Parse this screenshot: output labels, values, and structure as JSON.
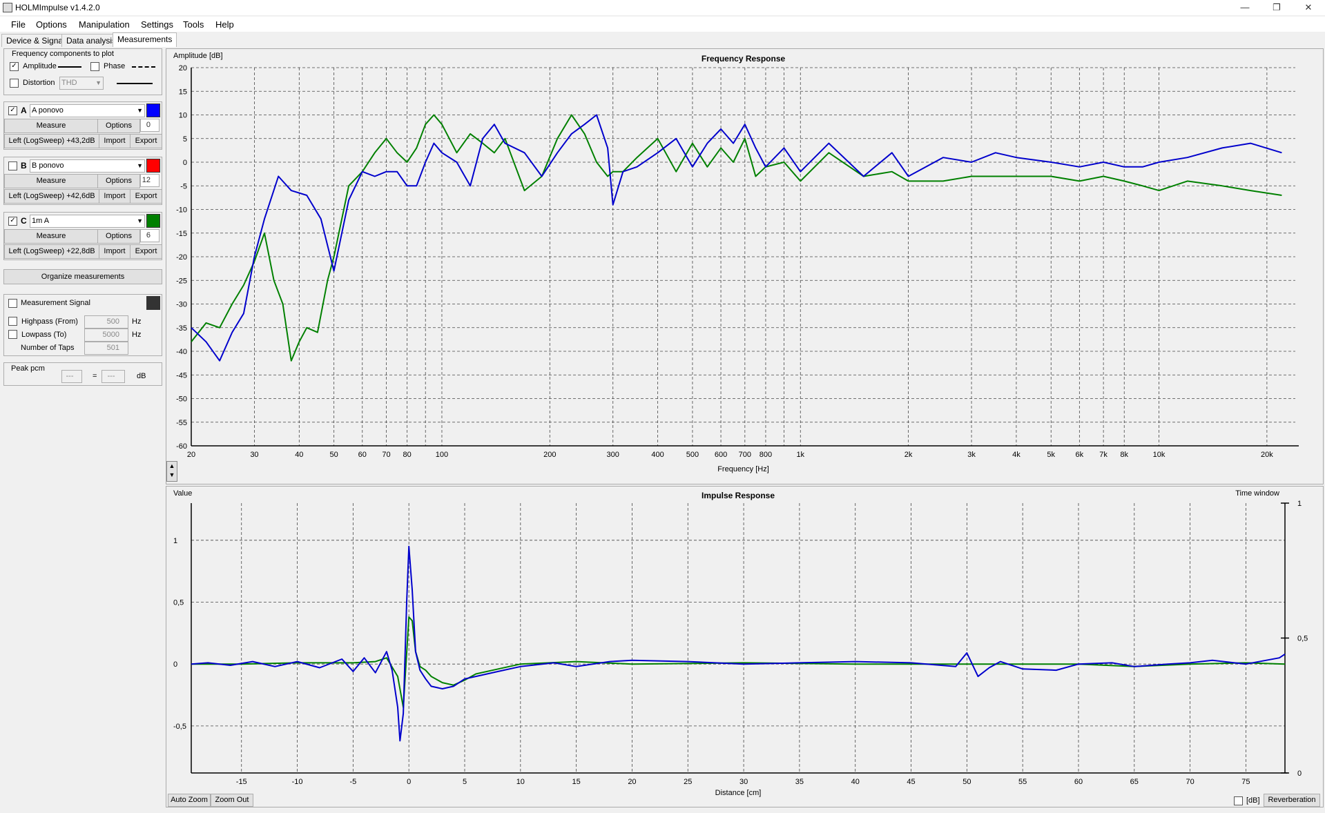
{
  "window": {
    "title": "HOLMImpulse  v1.4.2.0"
  },
  "menu": [
    "File",
    "Options",
    "Manipulation",
    "Settings",
    "Tools",
    "Help"
  ],
  "tabs": [
    "Device & Signal",
    "Data analysis",
    "Measurements"
  ],
  "components": {
    "title": "Frequency components to plot",
    "amplitude": "Amplitude",
    "phase": "Phase",
    "distortion": "Distortion",
    "distortion_type": "THD"
  },
  "measurements": [
    {
      "letter": "A",
      "checked": true,
      "name": "A ponovo",
      "color": "#0000ff",
      "measure": "Measure",
      "options": "Options",
      "offset": "0",
      "info": "Left (LogSweep) +43,2dB",
      "import": "Import",
      "export": "Export"
    },
    {
      "letter": "B",
      "checked": false,
      "name": "B ponovo",
      "color": "#ff0000",
      "measure": "Measure",
      "options": "Options",
      "offset": "12",
      "info": "Left (LogSweep) +42,6dB",
      "import": "Import",
      "export": "Export"
    },
    {
      "letter": "C",
      "checked": true,
      "name": "1m A",
      "color": "#008000",
      "measure": "Measure",
      "options": "Options",
      "offset": "6",
      "info": "Left (LogSweep) +22,8dB",
      "import": "Import",
      "export": "Export"
    }
  ],
  "organize": "Organize measurements",
  "signal": {
    "label": "Measurement Signal",
    "color": "#333333",
    "highpass": "Highpass (From)",
    "highpass_value": "500",
    "lowpass": "Lowpass (To)",
    "lowpass_value": "5000",
    "taps": "Number of Taps",
    "taps_value": "501",
    "unit": "Hz"
  },
  "peak": {
    "label": "Peak pcm",
    "v1": "---",
    "eq": "=",
    "v2": "---",
    "unit": "dB"
  },
  "freq_plot": {
    "title": "Frequency Response",
    "ylabel": "Amplitude [dB]",
    "xlabel": "Frequency [Hz]"
  },
  "imp_plot": {
    "title": "Impulse Response",
    "ylabel": "Value",
    "xlabel": "Distance [cm]",
    "time_window": "Time window",
    "auto_zoom": "Auto Zoom",
    "zoom_out": "Zoom Out",
    "db": "[dB]",
    "reverberation": "Reverberation"
  },
  "chart_data": [
    {
      "type": "line",
      "title": "Frequency Response",
      "xlabel": "Frequency [Hz]",
      "ylabel": "Amplitude [dB]",
      "xscale": "log",
      "xlim": [
        20,
        24000
      ],
      "ylim": [
        -60,
        20
      ],
      "grid": true,
      "x_ticks": [
        20,
        30,
        40,
        50,
        60,
        70,
        80,
        100,
        200,
        300,
        400,
        500,
        600,
        700,
        800,
        1000,
        2000,
        3000,
        4000,
        5000,
        6000,
        7000,
        8000,
        10000,
        20000
      ],
      "x_tick_labels": [
        "20",
        "30",
        "40",
        "50",
        "60",
        "70",
        "80",
        "100",
        "200",
        "300",
        "400",
        "500",
        "600",
        "700",
        "800",
        "1k",
        "2k",
        "3k",
        "4k",
        "5k",
        "6k",
        "7k",
        "8k",
        "10k",
        "20k"
      ],
      "y_ticks": [
        20,
        15,
        10,
        5,
        0,
        -5,
        -10,
        -15,
        -20,
        -25,
        -30,
        -35,
        -40,
        -45,
        -50,
        -55,
        -60
      ],
      "series": [
        {
          "color": "#0000cc",
          "x": [
            20,
            22,
            24,
            26,
            28,
            30,
            32,
            35,
            38,
            42,
            46,
            50,
            55,
            60,
            65,
            70,
            75,
            80,
            85,
            90,
            95,
            100,
            110,
            120,
            130,
            140,
            150,
            170,
            190,
            210,
            230,
            250,
            270,
            290,
            300,
            320,
            350,
            400,
            450,
            500,
            550,
            600,
            650,
            700,
            750,
            800,
            900,
            1000,
            1200,
            1500,
            1800,
            2000,
            2500,
            3000,
            3500,
            4000,
            5000,
            6000,
            7000,
            8000,
            9000,
            10000,
            12000,
            15000,
            18000,
            22000
          ],
          "y": [
            -35,
            -38,
            -42,
            -36,
            -32,
            -20,
            -12,
            -3,
            -6,
            -7,
            -12,
            -23,
            -8,
            -2,
            -3,
            -2,
            -2,
            -5,
            -5,
            0,
            4,
            2,
            0,
            -5,
            5,
            8,
            4,
            2,
            -3,
            2,
            6,
            8,
            10,
            3,
            -9,
            -2,
            -1,
            2,
            5,
            -1,
            4,
            7,
            4,
            8,
            3,
            -1,
            3,
            -2,
            4,
            -3,
            2,
            -3,
            1,
            0,
            2,
            1,
            0,
            -1,
            0,
            -1,
            -1,
            0,
            1,
            3,
            4,
            2
          ]
        },
        {
          "color": "#008000",
          "x": [
            20,
            22,
            24,
            26,
            28,
            30,
            32,
            34,
            36,
            38,
            40,
            42,
            45,
            48,
            50,
            55,
            60,
            65,
            70,
            75,
            80,
            85,
            90,
            95,
            100,
            110,
            120,
            130,
            140,
            150,
            170,
            190,
            210,
            230,
            250,
            270,
            290,
            300,
            320,
            350,
            400,
            450,
            500,
            550,
            600,
            650,
            700,
            750,
            800,
            900,
            1000,
            1200,
            1500,
            1800,
            2000,
            2500,
            3000,
            3500,
            4000,
            5000,
            6000,
            7000,
            8000,
            9000,
            10000,
            12000,
            15000,
            18000,
            22000
          ],
          "y": [
            -38,
            -34,
            -35,
            -30,
            -26,
            -21,
            -15,
            -25,
            -30,
            -42,
            -38,
            -35,
            -36,
            -25,
            -20,
            -5,
            -2,
            2,
            5,
            2,
            0,
            3,
            8,
            10,
            8,
            2,
            6,
            4,
            2,
            5,
            -6,
            -3,
            5,
            10,
            6,
            0,
            -3,
            -2,
            -2,
            1,
            5,
            -2,
            4,
            -1,
            3,
            0,
            5,
            -3,
            -1,
            0,
            -4,
            2,
            -3,
            -2,
            -4,
            -4,
            -3,
            -3,
            -3,
            -3,
            -4,
            -3,
            -4,
            -5,
            -6,
            -4,
            -5,
            -6,
            -7
          ]
        }
      ]
    },
    {
      "type": "line",
      "title": "Impulse Response",
      "xlabel": "Distance [cm]",
      "ylabel": "Value",
      "xlim": [
        -19.5,
        78.5
      ],
      "ylim": [
        -0.88,
        1.3
      ],
      "grid": true,
      "x_ticks": [
        -15,
        -10,
        -5,
        0,
        5,
        10,
        15,
        20,
        25,
        30,
        35,
        40,
        45,
        50,
        55,
        60,
        65,
        70,
        75
      ],
      "y_ticks": [
        1,
        0.5,
        0,
        -0.5
      ],
      "y_tick_labels": [
        "1",
        "0,5",
        "0",
        "-0,5"
      ],
      "right_axis_ticks": [
        "1",
        "0,5",
        "0"
      ],
      "series": [
        {
          "color": "#0000cc",
          "x": [
            -19.5,
            -18,
            -16,
            -14,
            -12,
            -10,
            -8,
            -6,
            -5,
            -4,
            -3,
            -2,
            -1.5,
            -1,
            -0.8,
            -0.5,
            -0.2,
            0,
            0.3,
            0.6,
            1,
            1.5,
            2,
            3,
            4,
            5,
            6,
            8,
            10,
            13,
            15,
            18,
            20,
            25,
            30,
            35,
            40,
            45,
            49,
            50,
            51,
            52,
            53,
            55,
            58,
            60,
            63,
            65,
            68,
            70,
            72,
            75,
            78,
            78.5
          ],
          "y": [
            0,
            0.01,
            -0.01,
            0.02,
            -0.02,
            0.02,
            -0.03,
            0.04,
            -0.06,
            0.05,
            -0.07,
            0.1,
            -0.05,
            -0.35,
            -0.62,
            -0.4,
            0.5,
            0.95,
            0.6,
            0.1,
            -0.05,
            -0.12,
            -0.18,
            -0.2,
            -0.18,
            -0.12,
            -0.1,
            -0.06,
            -0.02,
            0.01,
            -0.02,
            0.02,
            0.03,
            0.02,
            0.0,
            0.01,
            0.02,
            0.01,
            -0.02,
            0.09,
            -0.1,
            -0.03,
            0.02,
            -0.04,
            -0.05,
            0.0,
            0.01,
            -0.02,
            0.0,
            0.01,
            0.03,
            0.0,
            0.05,
            0.08
          ]
        },
        {
          "color": "#008000",
          "x": [
            -19.5,
            -15,
            -10,
            -5,
            -3,
            -2,
            -1,
            -0.5,
            0,
            0.3,
            0.6,
            1,
            1.5,
            2,
            3,
            4,
            5,
            6,
            8,
            10,
            15,
            20,
            30,
            40,
            50,
            60,
            65,
            70,
            75,
            78.5
          ],
          "y": [
            0,
            0.0,
            0.01,
            0.01,
            0.02,
            0.05,
            -0.1,
            -0.35,
            0.38,
            0.35,
            0.1,
            -0.02,
            -0.05,
            -0.1,
            -0.15,
            -0.17,
            -0.13,
            -0.08,
            -0.04,
            0.0,
            0.02,
            0.0,
            0.01,
            0.0,
            0.0,
            0.0,
            -0.02,
            0.0,
            0.01,
            0.0
          ]
        }
      ]
    }
  ]
}
